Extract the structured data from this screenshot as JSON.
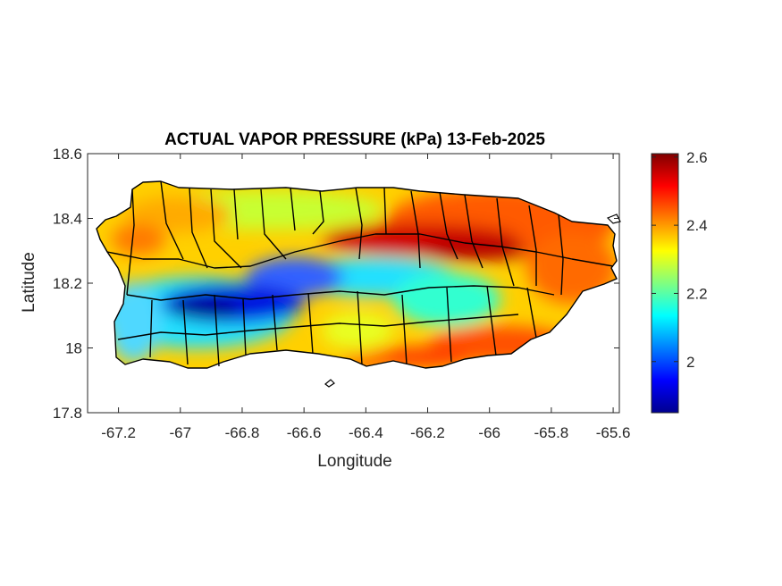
{
  "chart_data": {
    "type": "heatmap",
    "title": "ACTUAL VAPOR PRESSURE (kPa) 13-Feb-2025",
    "xlabel": "Longitude",
    "ylabel": "Latitude",
    "xlim": [
      -67.3,
      -65.58
    ],
    "ylim": [
      17.8,
      18.6
    ],
    "xticks": [
      "-67.2",
      "-67",
      "-66.8",
      "-66.6",
      "-66.4",
      "-66.2",
      "-66",
      "-65.8",
      "-65.6"
    ],
    "xtick_values": [
      -67.2,
      -67.0,
      -66.8,
      -66.6,
      -66.4,
      -66.2,
      -66.0,
      -65.8,
      -65.6
    ],
    "yticks": [
      "18.6",
      "18.4",
      "18.2",
      "18"
    ],
    "ytick_values": [
      18.6,
      18.4,
      18.2,
      18.0
    ],
    "yticks_extra": [
      "17.8"
    ],
    "yticks_extra_values": [
      17.8
    ],
    "colorbar": {
      "colormap": "jet",
      "range": [
        1.85,
        2.61
      ],
      "ticks": [
        "2.6",
        "2.4",
        "2.2",
        "2"
      ],
      "tick_values": [
        2.6,
        2.4,
        2.2,
        2.0
      ]
    },
    "field_features": [
      {
        "name": "low",
        "lon": -66.82,
        "lat": 18.11,
        "value": 1.88
      },
      {
        "name": "low",
        "lon": -66.62,
        "lat": 18.19,
        "value": 2.02
      },
      {
        "name": "high",
        "lon": -66.25,
        "lat": 18.33,
        "value": 2.6
      },
      {
        "name": "high",
        "lon": -65.75,
        "lat": 18.35,
        "value": 2.5
      },
      {
        "name": "high",
        "lon": -66.1,
        "lat": 17.98,
        "value": 2.5
      }
    ]
  }
}
